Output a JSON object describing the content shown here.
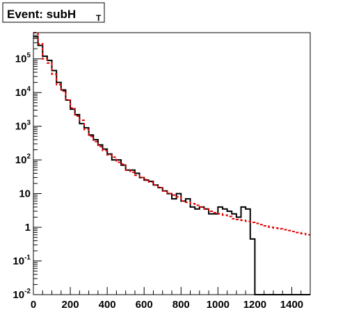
{
  "chart_data": {
    "type": "histogram",
    "title": "Event: subH",
    "title_subscript": "T",
    "xlabel": "",
    "ylabel": "",
    "xlim": [
      0,
      1500
    ],
    "ylim": [
      0.01,
      600000
    ],
    "log_y": true,
    "grid": false,
    "x_ticks": [
      {
        "value": 0,
        "label": "0"
      },
      {
        "value": 200,
        "label": "200"
      },
      {
        "value": 400,
        "label": "400"
      },
      {
        "value": 600,
        "label": "600"
      },
      {
        "value": 800,
        "label": "800"
      },
      {
        "value": 1000,
        "label": "1000"
      },
      {
        "value": 1200,
        "label": "1200"
      },
      {
        "value": 1400,
        "label": "1400"
      }
    ],
    "y_ticks": [
      {
        "value": 100000,
        "base": "10",
        "exp": "5"
      },
      {
        "value": 10000,
        "base": "10",
        "exp": "4"
      },
      {
        "value": 1000,
        "base": "10",
        "exp": "3"
      },
      {
        "value": 100,
        "base": "10",
        "exp": "2"
      },
      {
        "value": 10,
        "base": "10",
        "exp": ""
      },
      {
        "value": 1,
        "base": "1",
        "exp": ""
      },
      {
        "value": 0.1,
        "base": "10",
        "exp": "-1"
      },
      {
        "value": 0.01,
        "base": "10",
        "exp": "-2"
      }
    ],
    "bin_edges": [
      0,
      25,
      50,
      75,
      100,
      125,
      150,
      175,
      200,
      225,
      250,
      275,
      300,
      325,
      350,
      375,
      400,
      425,
      450,
      475,
      500,
      525,
      550,
      575,
      600,
      625,
      650,
      675,
      700,
      725,
      750,
      775,
      800,
      825,
      850,
      875,
      900,
      925,
      950,
      975,
      1000,
      1025,
      1050,
      1075,
      1100,
      1125,
      1150,
      1175,
      1200,
      1225,
      1250,
      1275,
      1300,
      1325,
      1350,
      1375,
      1400,
      1425,
      1450,
      1475,
      1500
    ],
    "series": [
      {
        "name": "",
        "color": "#000000",
        "style": "solid",
        "values": [
          450000,
          250000,
          120000,
          90000,
          45000,
          20000,
          12000,
          6000,
          3200,
          2200,
          1200,
          900,
          550,
          400,
          280,
          210,
          150,
          100,
          100,
          70,
          50,
          50,
          40,
          30,
          25,
          23,
          18,
          15,
          12,
          10,
          7,
          10,
          6,
          7,
          4,
          3.5,
          4,
          3.5,
          2.5,
          2.5,
          4,
          3.5,
          3,
          2.5,
          2,
          4,
          3.5,
          0.45,
          0.01,
          0.01,
          0.01,
          0.01,
          0.01,
          0.01,
          0.01,
          0.01,
          0.01,
          0.01,
          0.01,
          0.01
        ]
      },
      {
        "name": "",
        "color": "#e00000",
        "style": "dashed",
        "values": [
          600000,
          280000,
          100000,
          75000,
          35000,
          17000,
          11000,
          6000,
          3500,
          2000,
          1500,
          800,
          500,
          350,
          250,
          190,
          140,
          120,
          85,
          75,
          50,
          43,
          35,
          30,
          26,
          22,
          18,
          15,
          12,
          10,
          9,
          8,
          6,
          5.5,
          5,
          4.5,
          4,
          3.5,
          3,
          2.7,
          2.5,
          2.3,
          2.1,
          1.8,
          1.7,
          1.6,
          1.5,
          1.4,
          1.3,
          1.2,
          1.1,
          1.0,
          0.95,
          0.9,
          0.85,
          0.8,
          0.75,
          0.7,
          0.65,
          0.6
        ]
      }
    ]
  }
}
